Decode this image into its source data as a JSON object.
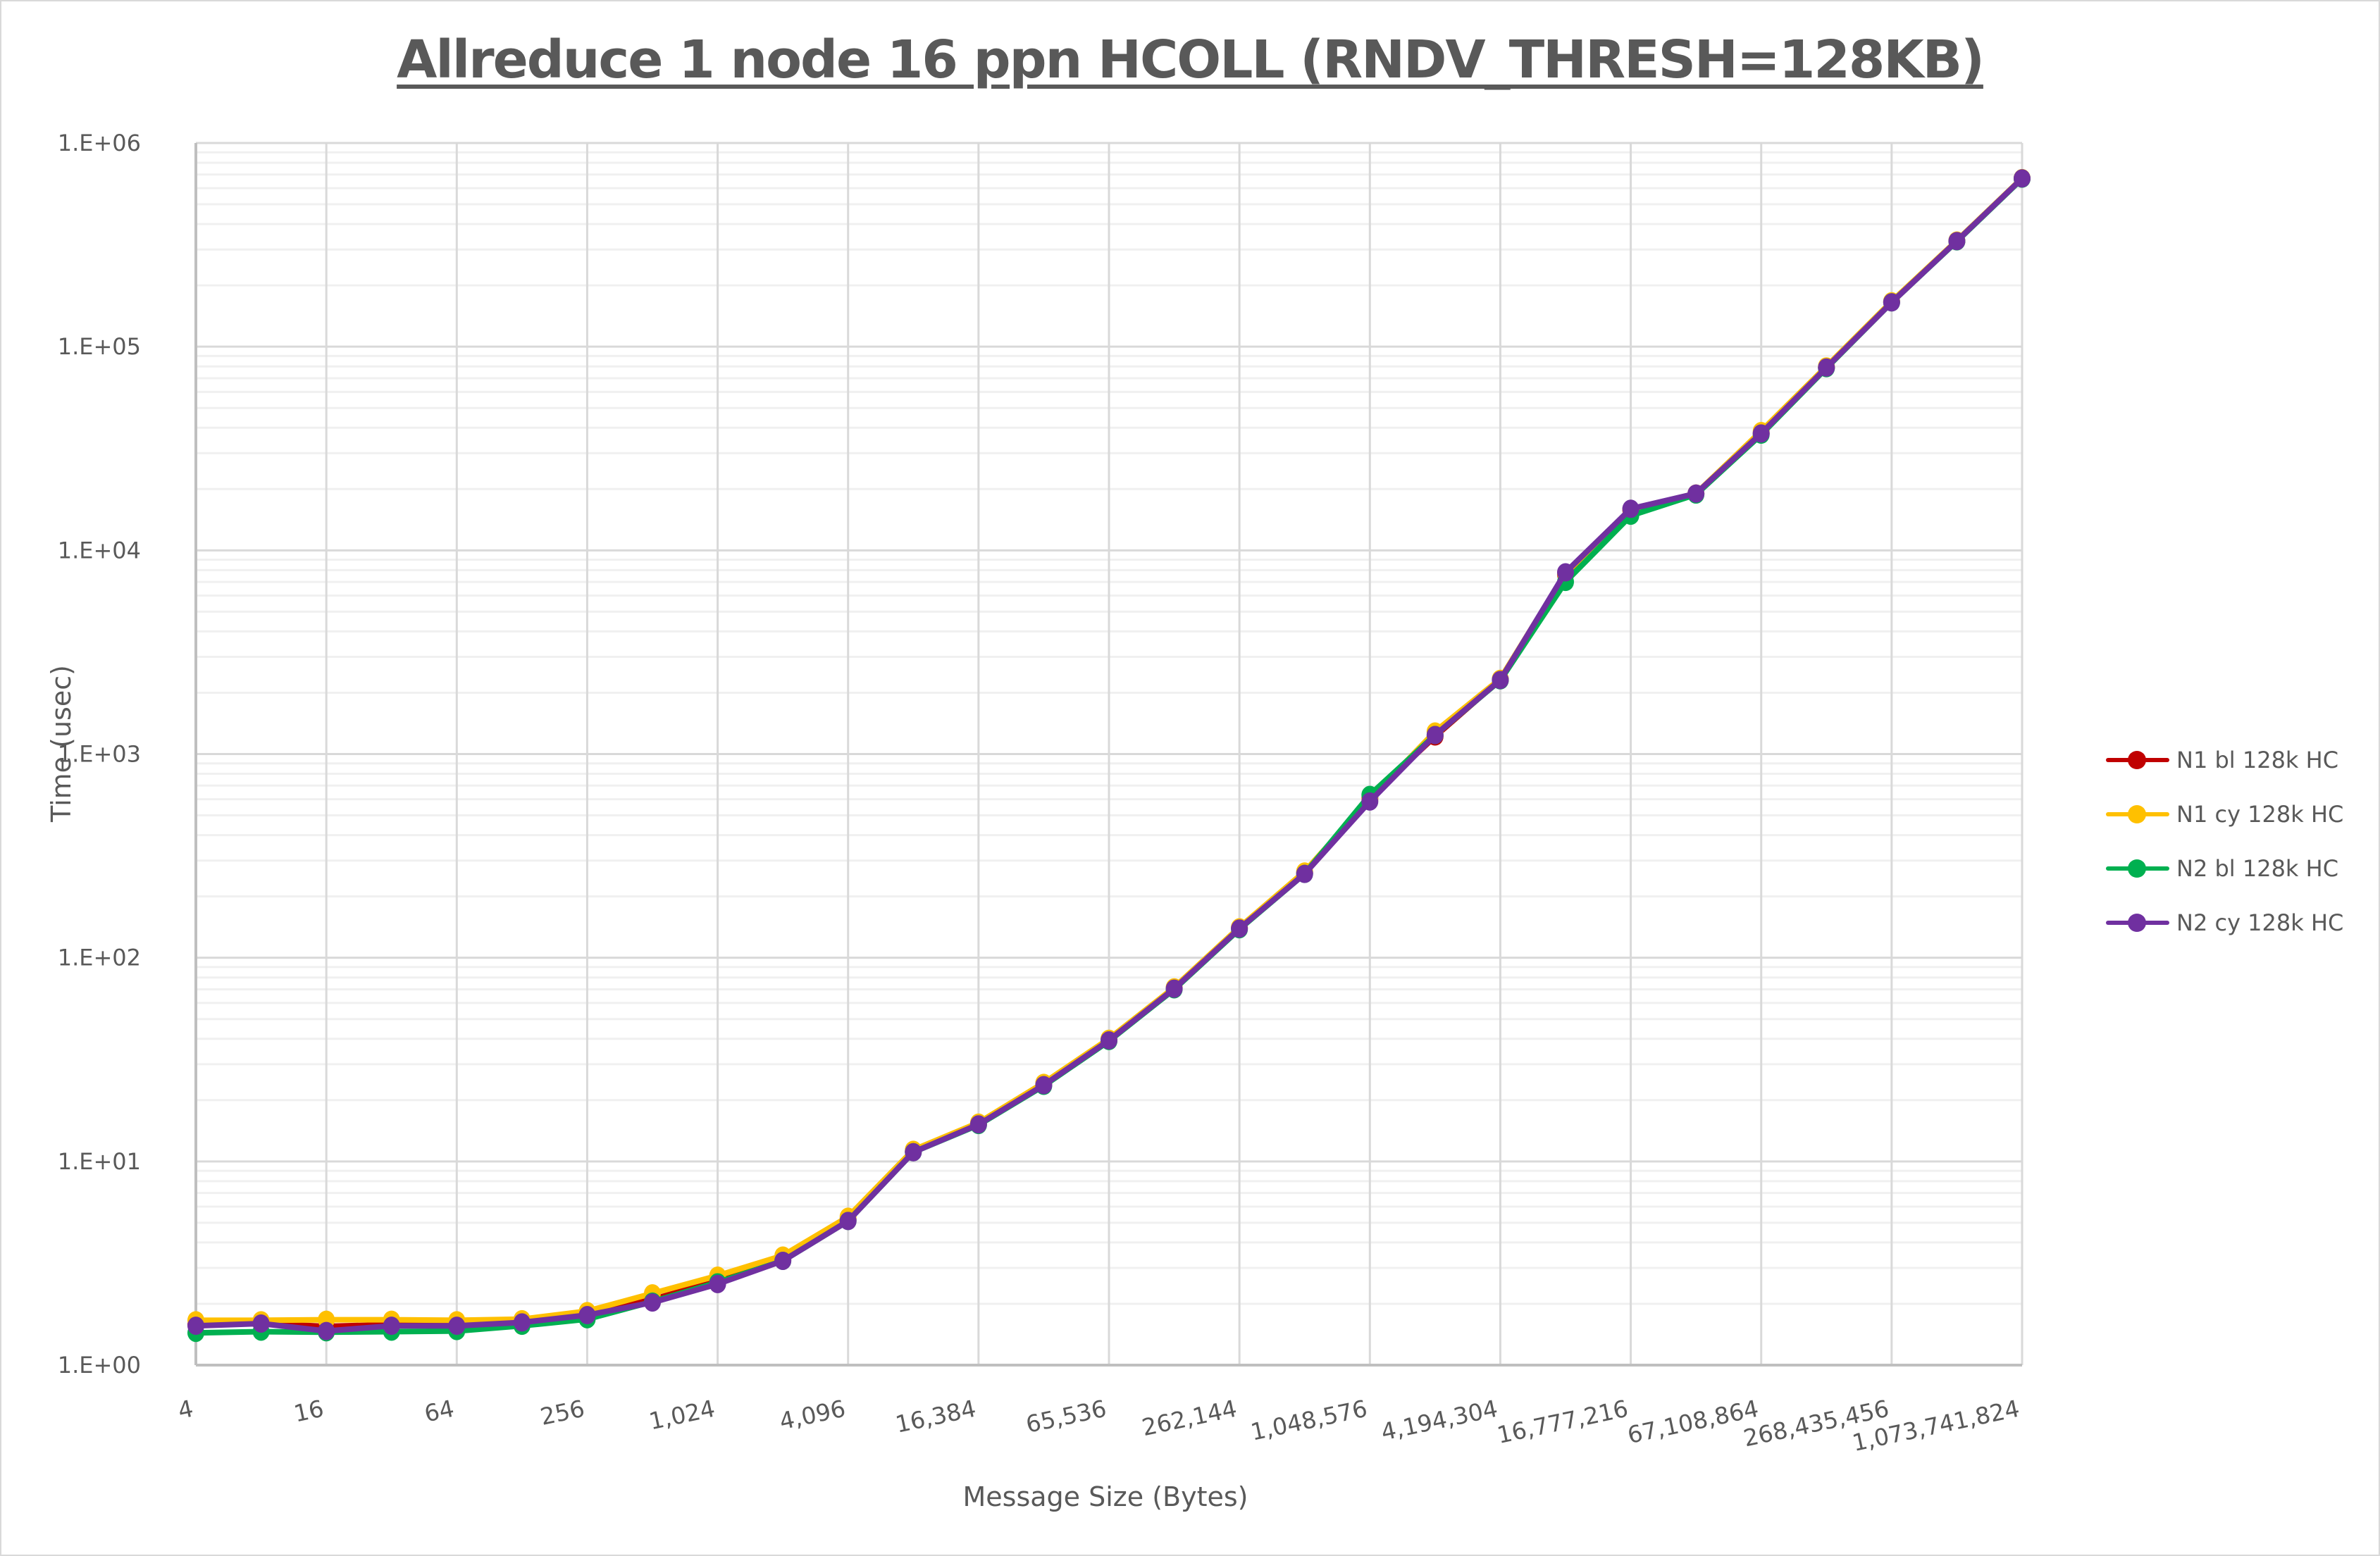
{
  "chart_data": {
    "type": "line",
    "title": "Allreduce 1 node 16 ppn HCOLL (RNDV_THRESH=128KB)",
    "xlabel": "Message Size (Bytes)",
    "ylabel": "Time (usec)",
    "xscale": "log2",
    "yscale": "log10",
    "ylim": [
      1,
      1000000
    ],
    "grid": true,
    "legend_position": "right",
    "y_tick_labels": [
      "1.E+00",
      "1.E+01",
      "1.E+02",
      "1.E+03",
      "1.E+04",
      "1.E+05",
      "1.E+06"
    ],
    "x_tick_labels": [
      "4",
      "16",
      "64",
      "256",
      "1,024",
      "4,096",
      "16,384",
      "65,536",
      "262,144",
      "1,048,576",
      "4,194,304",
      "16,777,216",
      "67,108,864",
      "268,435,456",
      "1,073,741,824"
    ],
    "x": [
      4,
      8,
      16,
      32,
      64,
      128,
      256,
      512,
      1024,
      2048,
      4096,
      8192,
      16384,
      32768,
      65536,
      131072,
      262144,
      524288,
      1048576,
      2097152,
      4194304,
      8388608,
      16777216,
      33554432,
      67108864,
      134217728,
      268435456,
      536870912,
      1073741824
    ],
    "series": [
      {
        "name": "N1 bl 128k HC",
        "color": "#C00000",
        "values": [
          1.58,
          1.6,
          1.55,
          1.58,
          1.58,
          1.62,
          1.78,
          2.1,
          2.6,
          3.3,
          5.2,
          11.2,
          15.3,
          24,
          39.5,
          71,
          140,
          262,
          610,
          1220,
          2320,
          7600,
          15800,
          19000,
          37500,
          79000,
          166000,
          330000,
          670000
        ]
      },
      {
        "name": "N1 cy 128k HC",
        "color": "#FFC000",
        "values": [
          1.66,
          1.66,
          1.67,
          1.67,
          1.66,
          1.68,
          1.84,
          2.25,
          2.75,
          3.45,
          5.35,
          11.4,
          15.5,
          24.3,
          40,
          71.5,
          141,
          265,
          600,
          1290,
          2340,
          7700,
          15900,
          19000,
          38500,
          80000,
          167000,
          332000,
          672000
        ]
      },
      {
        "name": "N2 bl 128k HC",
        "color": "#00B050",
        "values": [
          1.44,
          1.46,
          1.45,
          1.46,
          1.47,
          1.56,
          1.68,
          2.05,
          2.55,
          3.25,
          5.1,
          11.1,
          15.1,
          23.5,
          39,
          70,
          138,
          258,
          630,
          1240,
          2300,
          7000,
          14800,
          18800,
          37000,
          78500,
          165000,
          329000,
          668000
        ]
      },
      {
        "name": "N2 cy 128k HC",
        "color": "#7030A0",
        "values": [
          1.56,
          1.6,
          1.47,
          1.56,
          1.56,
          1.62,
          1.76,
          2.03,
          2.5,
          3.25,
          5.1,
          11.1,
          15.2,
          23.7,
          39.3,
          70.5,
          139,
          258,
          585,
          1240,
          2310,
          7800,
          16000,
          19000,
          37500,
          79000,
          165000,
          330000,
          670000
        ]
      }
    ]
  },
  "legend": {
    "items": [
      {
        "label": "N1 bl 128k HC",
        "color": "#C00000"
      },
      {
        "label": "N1 cy 128k HC",
        "color": "#FFC000"
      },
      {
        "label": "N2 bl 128k HC",
        "color": "#00B050"
      },
      {
        "label": "N2 cy 128k HC",
        "color": "#7030A0"
      }
    ]
  }
}
